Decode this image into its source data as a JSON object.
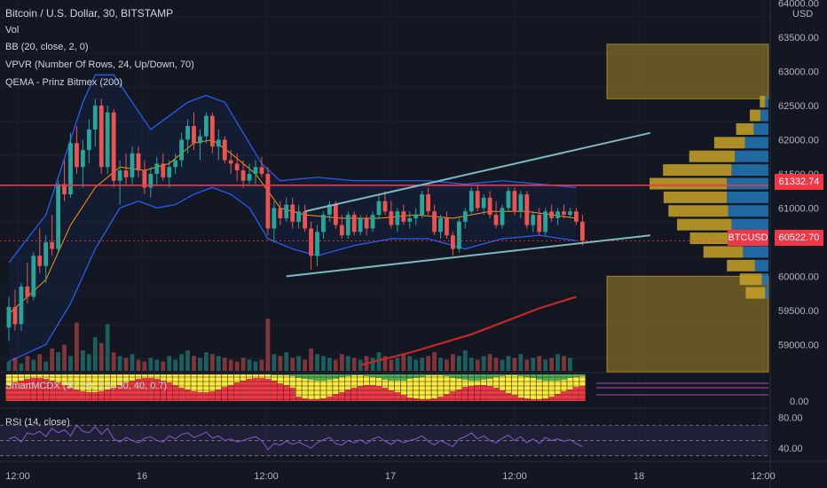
{
  "header": {
    "symbol_title": "Bitcoin / U.S. Dollar, 30, BITSTAMP",
    "indicators": [
      "Vol",
      "BB (20, close, 2, 0)",
      "VPVR (Number Of Rows, 24, Up/Down, 70)",
      "QEMA - Prinz Bitmex (200)"
    ]
  },
  "price_axis": {
    "currency": "USD",
    "ticks": [
      "64000.00",
      "63500.00",
      "63000.00",
      "62500.00",
      "62000.00",
      "61500.00",
      "61000.00",
      "60000.00",
      "59500.00",
      "59000.00"
    ],
    "tick_values": [
      64000,
      63500,
      63000,
      62500,
      62000,
      61500,
      61000,
      60000,
      59500,
      59000
    ]
  },
  "price_tags": {
    "horizontal_line": {
      "label": "61332.74",
      "value": 61332.74,
      "color": "#f23645"
    },
    "last_price": {
      "label": "60522.70",
      "value": 60522.7,
      "symbol": "BTCUSD",
      "color": "#f23645"
    }
  },
  "time_axis": {
    "ticks": [
      "12:00",
      "16",
      "12:00",
      "17",
      "12:00",
      "18",
      "12:00"
    ]
  },
  "smartmcdx": {
    "label": "SmartMCDX (50, 50, 1.5, 30, 40, 0.7)",
    "axis_label": "0.00",
    "colors": {
      "retail": "#ffeb3b",
      "banker": "#f23645",
      "hot": "#4caf50"
    }
  },
  "rsi": {
    "label": "RSI (14, close)",
    "ticks": [
      "80.00",
      "40.00"
    ],
    "tick_values": [
      80,
      40
    ],
    "ylim": [
      25,
      90
    ]
  },
  "colors": {
    "background": "#131722",
    "up": "#26a69a",
    "down": "#ef5350",
    "bb_band": "#2962ff",
    "bb_basis": "#ff9800",
    "qema": "#c62828",
    "trendline": "#7cb9c2",
    "vpvr_up": "#c9a227",
    "vpvr_down": "#2377b8",
    "rsi_line": "#7e57c2"
  },
  "chart_data": {
    "type": "candlestick",
    "title": "Bitcoin / U.S. Dollar, 30, BITSTAMP",
    "ylim": [
      58400,
      64000
    ],
    "candles": [
      {
        "o": 59250,
        "h": 59700,
        "l": 59050,
        "c": 59550
      },
      {
        "o": 59550,
        "h": 59800,
        "l": 59200,
        "c": 59300
      },
      {
        "o": 59300,
        "h": 59900,
        "l": 59200,
        "c": 59850
      },
      {
        "o": 59850,
        "h": 60200,
        "l": 59600,
        "c": 59700
      },
      {
        "o": 59700,
        "h": 60350,
        "l": 59650,
        "c": 60300
      },
      {
        "o": 60300,
        "h": 60700,
        "l": 60050,
        "c": 60150
      },
      {
        "o": 60150,
        "h": 60600,
        "l": 59900,
        "c": 60500
      },
      {
        "o": 60500,
        "h": 60900,
        "l": 60300,
        "c": 60400
      },
      {
        "o": 60400,
        "h": 61400,
        "l": 60350,
        "c": 61350
      },
      {
        "o": 61350,
        "h": 61700,
        "l": 61100,
        "c": 61200
      },
      {
        "o": 61200,
        "h": 62100,
        "l": 61150,
        "c": 61950
      },
      {
        "o": 61950,
        "h": 62200,
        "l": 61500,
        "c": 61600
      },
      {
        "o": 61600,
        "h": 62000,
        "l": 61300,
        "c": 61850
      },
      {
        "o": 61850,
        "h": 62300,
        "l": 61650,
        "c": 62150
      },
      {
        "o": 62150,
        "h": 62600,
        "l": 61900,
        "c": 62500
      },
      {
        "o": 62500,
        "h": 62600,
        "l": 61500,
        "c": 61600
      },
      {
        "o": 61600,
        "h": 62500,
        "l": 61500,
        "c": 62400
      },
      {
        "o": 62400,
        "h": 62450,
        "l": 61300,
        "c": 61400
      },
      {
        "o": 61400,
        "h": 61700,
        "l": 61050,
        "c": 61550
      },
      {
        "o": 61550,
        "h": 61800,
        "l": 61350,
        "c": 61450
      },
      {
        "o": 61450,
        "h": 61900,
        "l": 61350,
        "c": 61800
      },
      {
        "o": 61800,
        "h": 61900,
        "l": 61450,
        "c": 61550
      },
      {
        "o": 61550,
        "h": 61700,
        "l": 61200,
        "c": 61300
      },
      {
        "o": 61300,
        "h": 61600,
        "l": 61150,
        "c": 61500
      },
      {
        "o": 61500,
        "h": 61750,
        "l": 61350,
        "c": 61650
      },
      {
        "o": 61650,
        "h": 61800,
        "l": 61400,
        "c": 61450
      },
      {
        "o": 61450,
        "h": 61700,
        "l": 61300,
        "c": 61600
      },
      {
        "o": 61600,
        "h": 61800,
        "l": 61500,
        "c": 61700
      },
      {
        "o": 61700,
        "h": 62100,
        "l": 61600,
        "c": 62000
      },
      {
        "o": 62000,
        "h": 62300,
        "l": 61800,
        "c": 62200
      },
      {
        "o": 62200,
        "h": 62400,
        "l": 61850,
        "c": 61950
      },
      {
        "o": 61950,
        "h": 62150,
        "l": 61700,
        "c": 62050
      },
      {
        "o": 62050,
        "h": 62400,
        "l": 61950,
        "c": 62350
      },
      {
        "o": 62350,
        "h": 62400,
        "l": 61800,
        "c": 61900
      },
      {
        "o": 61900,
        "h": 62150,
        "l": 61700,
        "c": 62000
      },
      {
        "o": 62000,
        "h": 62050,
        "l": 61650,
        "c": 61700
      },
      {
        "o": 61700,
        "h": 61850,
        "l": 61500,
        "c": 61650
      },
      {
        "o": 61650,
        "h": 61800,
        "l": 61400,
        "c": 61550
      },
      {
        "o": 61550,
        "h": 61700,
        "l": 61300,
        "c": 61400
      },
      {
        "o": 61400,
        "h": 61650,
        "l": 61350,
        "c": 61500
      },
      {
        "o": 61500,
        "h": 61700,
        "l": 61350,
        "c": 61600
      },
      {
        "o": 61600,
        "h": 61750,
        "l": 61450,
        "c": 61500
      },
      {
        "o": 61500,
        "h": 61600,
        "l": 60600,
        "c": 60700
      },
      {
        "o": 60700,
        "h": 61100,
        "l": 60500,
        "c": 61000
      },
      {
        "o": 61000,
        "h": 61100,
        "l": 60750,
        "c": 60850
      },
      {
        "o": 60850,
        "h": 61150,
        "l": 60800,
        "c": 61050
      },
      {
        "o": 61050,
        "h": 61150,
        "l": 60700,
        "c": 60800
      },
      {
        "o": 60800,
        "h": 61050,
        "l": 60700,
        "c": 60950
      },
      {
        "o": 60950,
        "h": 61050,
        "l": 60650,
        "c": 60700
      },
      {
        "o": 60700,
        "h": 60800,
        "l": 60100,
        "c": 60300
      },
      {
        "o": 60300,
        "h": 60750,
        "l": 60150,
        "c": 60650
      },
      {
        "o": 60650,
        "h": 60950,
        "l": 60550,
        "c": 60900
      },
      {
        "o": 60900,
        "h": 61100,
        "l": 60800,
        "c": 61050
      },
      {
        "o": 61050,
        "h": 61100,
        "l": 60700,
        "c": 60750
      },
      {
        "o": 60750,
        "h": 60900,
        "l": 60550,
        "c": 60600
      },
      {
        "o": 60600,
        "h": 60950,
        "l": 60550,
        "c": 60900
      },
      {
        "o": 60900,
        "h": 60950,
        "l": 60600,
        "c": 60650
      },
      {
        "o": 60650,
        "h": 60900,
        "l": 60600,
        "c": 60850
      },
      {
        "o": 60850,
        "h": 60900,
        "l": 60600,
        "c": 60700
      },
      {
        "o": 60700,
        "h": 60950,
        "l": 60650,
        "c": 60900
      },
      {
        "o": 60900,
        "h": 61200,
        "l": 60850,
        "c": 61100
      },
      {
        "o": 61100,
        "h": 61250,
        "l": 60900,
        "c": 60950
      },
      {
        "o": 60950,
        "h": 61100,
        "l": 60700,
        "c": 60750
      },
      {
        "o": 60750,
        "h": 61000,
        "l": 60650,
        "c": 60950
      },
      {
        "o": 60950,
        "h": 61050,
        "l": 60750,
        "c": 60800
      },
      {
        "o": 60800,
        "h": 60950,
        "l": 60700,
        "c": 60850
      },
      {
        "o": 60850,
        "h": 61000,
        "l": 60750,
        "c": 60900
      },
      {
        "o": 60900,
        "h": 61250,
        "l": 60850,
        "c": 61200
      },
      {
        "o": 61200,
        "h": 61300,
        "l": 60900,
        "c": 60950
      },
      {
        "o": 60950,
        "h": 61050,
        "l": 60600,
        "c": 60650
      },
      {
        "o": 60650,
        "h": 60900,
        "l": 60550,
        "c": 60850
      },
      {
        "o": 60850,
        "h": 60950,
        "l": 60550,
        "c": 60600
      },
      {
        "o": 60600,
        "h": 60650,
        "l": 60300,
        "c": 60400
      },
      {
        "o": 60400,
        "h": 60850,
        "l": 60350,
        "c": 60800
      },
      {
        "o": 60800,
        "h": 61000,
        "l": 60700,
        "c": 60950
      },
      {
        "o": 60950,
        "h": 61300,
        "l": 60900,
        "c": 61250
      },
      {
        "o": 61250,
        "h": 61350,
        "l": 60950,
        "c": 61000
      },
      {
        "o": 61000,
        "h": 61200,
        "l": 60900,
        "c": 61150
      },
      {
        "o": 61150,
        "h": 61250,
        "l": 60850,
        "c": 60900
      },
      {
        "o": 60900,
        "h": 61100,
        "l": 60700,
        "c": 60750
      },
      {
        "o": 60750,
        "h": 61050,
        "l": 60700,
        "c": 61000
      },
      {
        "o": 61000,
        "h": 61300,
        "l": 60950,
        "c": 61250
      },
      {
        "o": 61250,
        "h": 61300,
        "l": 60900,
        "c": 60950
      },
      {
        "o": 60950,
        "h": 61250,
        "l": 60850,
        "c": 61200
      },
      {
        "o": 61200,
        "h": 61250,
        "l": 60700,
        "c": 60750
      },
      {
        "o": 60750,
        "h": 60950,
        "l": 60650,
        "c": 60900
      },
      {
        "o": 60900,
        "h": 61000,
        "l": 60600,
        "c": 60650
      },
      {
        "o": 60650,
        "h": 61000,
        "l": 60600,
        "c": 60950
      },
      {
        "o": 60950,
        "h": 61050,
        "l": 60800,
        "c": 60850
      },
      {
        "o": 60850,
        "h": 61000,
        "l": 60750,
        "c": 60950
      },
      {
        "o": 60950,
        "h": 61050,
        "l": 60850,
        "c": 60900
      },
      {
        "o": 60900,
        "h": 61000,
        "l": 60850,
        "c": 60950
      },
      {
        "o": 60950,
        "h": 61000,
        "l": 60750,
        "c": 60800
      },
      {
        "o": 60800,
        "h": 60900,
        "l": 60450,
        "c": 60520
      }
    ],
    "bb_upper": [
      [
        0,
        60200
      ],
      [
        6,
        60900
      ],
      [
        10,
        62000
      ],
      [
        12,
        62550
      ],
      [
        14,
        62950
      ],
      [
        17,
        62950
      ],
      [
        20,
        62550
      ],
      [
        23,
        62150
      ],
      [
        26,
        62350
      ],
      [
        29,
        62550
      ],
      [
        32,
        62650
      ],
      [
        35,
        62550
      ],
      [
        38,
        62100
      ],
      [
        41,
        61650
      ],
      [
        44,
        61400
      ],
      [
        50,
        61450
      ],
      [
        56,
        61400
      ],
      [
        62,
        61400
      ],
      [
        68,
        61400
      ],
      [
        74,
        61350
      ],
      [
        80,
        61400
      ],
      [
        86,
        61350
      ],
      [
        92,
        61300
      ]
    ],
    "bb_lower": [
      [
        0,
        58750
      ],
      [
        6,
        59000
      ],
      [
        10,
        59600
      ],
      [
        14,
        60400
      ],
      [
        18,
        61000
      ],
      [
        21,
        61100
      ],
      [
        24,
        61000
      ],
      [
        27,
        61050
      ],
      [
        30,
        61200
      ],
      [
        33,
        61300
      ],
      [
        36,
        61200
      ],
      [
        39,
        61000
      ],
      [
        42,
        60550
      ],
      [
        46,
        60400
      ],
      [
        50,
        60300
      ],
      [
        56,
        60450
      ],
      [
        62,
        60550
      ],
      [
        68,
        60550
      ],
      [
        74,
        60400
      ],
      [
        80,
        60550
      ],
      [
        86,
        60600
      ],
      [
        92,
        60520
      ]
    ],
    "bb_basis": [
      [
        0,
        59450
      ],
      [
        6,
        59950
      ],
      [
        10,
        60750
      ],
      [
        14,
        61300
      ],
      [
        18,
        61600
      ],
      [
        22,
        61550
      ],
      [
        26,
        61650
      ],
      [
        30,
        61950
      ],
      [
        33,
        62000
      ],
      [
        36,
        61800
      ],
      [
        40,
        61500
      ],
      [
        44,
        61000
      ],
      [
        48,
        60900
      ],
      [
        54,
        60850
      ],
      [
        60,
        60850
      ],
      [
        66,
        60900
      ],
      [
        72,
        60850
      ],
      [
        78,
        60950
      ],
      [
        84,
        60950
      ],
      [
        92,
        60850
      ]
    ],
    "qema": [
      [
        57,
        58700
      ],
      [
        65,
        58880
      ],
      [
        75,
        59150
      ],
      [
        86,
        59530
      ],
      [
        92,
        59700
      ]
    ],
    "trendlines": [
      {
        "from": [
          45,
          60000
        ],
        "to": [
          104,
          60600
        ]
      },
      {
        "from": [
          48,
          60950
        ],
        "to": [
          104,
          62100
        ]
      }
    ],
    "horizontal_line": 61332.74,
    "vpvr": [
      {
        "price": 59750,
        "up": 0.22,
        "down": 0.05
      },
      {
        "price": 59950,
        "up": 0.25,
        "down": 0.1
      },
      {
        "price": 60150,
        "up": 0.32,
        "down": 0.2
      },
      {
        "price": 60350,
        "up": 0.45,
        "down": 0.38
      },
      {
        "price": 60550,
        "up": 0.55,
        "down": 0.45
      },
      {
        "price": 60750,
        "up": 0.62,
        "down": 0.55
      },
      {
        "price": 60950,
        "up": 0.68,
        "down": 0.6
      },
      {
        "price": 61150,
        "up": 0.72,
        "down": 0.62
      },
      {
        "price": 61350,
        "up": 0.88,
        "down": 0.62
      },
      {
        "price": 61550,
        "up": 0.78,
        "down": 0.55
      },
      {
        "price": 61750,
        "up": 0.52,
        "down": 0.5
      },
      {
        "price": 61950,
        "up": 0.35,
        "down": 0.35
      },
      {
        "price": 62150,
        "up": 0.2,
        "down": 0.22
      },
      {
        "price": 62350,
        "up": 0.12,
        "down": 0.12
      },
      {
        "price": 62550,
        "up": 0.06,
        "down": 0.05
      }
    ],
    "value_area": [
      {
        "from": 58600,
        "to": 60000
      },
      {
        "from": 62600,
        "to": 63400
      }
    ],
    "volume": [
      5,
      7,
      4,
      8,
      6,
      9,
      5,
      12,
      10,
      14,
      8,
      26,
      11,
      9,
      18,
      15,
      25,
      10,
      8,
      7,
      9,
      6,
      5,
      7,
      6,
      5,
      8,
      6,
      9,
      11,
      8,
      7,
      10,
      9,
      8,
      7,
      6,
      5,
      7,
      6,
      5,
      6,
      28,
      9,
      8,
      10,
      7,
      8,
      6,
      12,
      9,
      8,
      7,
      6,
      9,
      8,
      7,
      6,
      8,
      7,
      10,
      8,
      6,
      7,
      9,
      8,
      6,
      7,
      8,
      10,
      7,
      6,
      9,
      8,
      11,
      7,
      6,
      8,
      9,
      7,
      6,
      8,
      7,
      9,
      6,
      7,
      8,
      6,
      7,
      9,
      8,
      7
    ],
    "rsi": [
      52,
      55,
      48,
      60,
      58,
      62,
      55,
      66,
      60,
      64,
      56,
      70,
      62,
      60,
      68,
      58,
      66,
      52,
      48,
      54,
      50,
      47,
      53,
      55,
      50,
      48,
      56,
      52,
      58,
      60,
      54,
      57,
      61,
      53,
      56,
      50,
      52,
      48,
      50,
      53,
      55,
      50,
      38,
      46,
      44,
      49,
      45,
      48,
      44,
      40,
      47,
      51,
      54,
      46,
      44,
      50,
      47,
      51,
      46,
      52,
      55,
      49,
      45,
      51,
      47,
      50,
      52,
      56,
      49,
      44,
      50,
      46,
      42,
      52,
      55,
      60,
      52,
      56,
      50,
      47,
      53,
      57,
      50,
      55,
      47,
      52,
      46,
      54,
      50,
      52,
      49,
      51,
      46,
      42
    ]
  }
}
